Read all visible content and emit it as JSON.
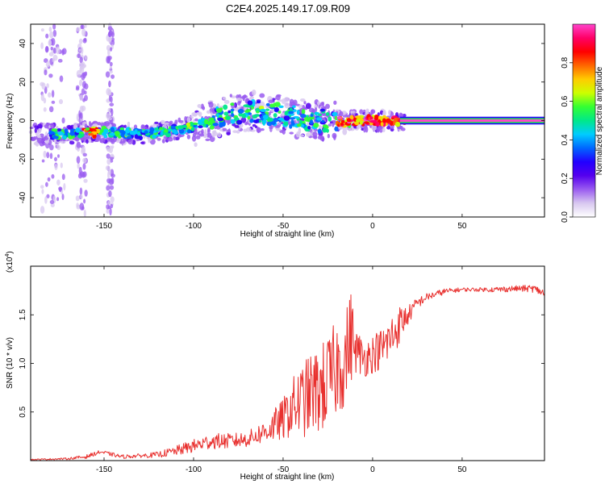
{
  "chart_data": [
    {
      "type": "heatmap",
      "title": "C2E4.2025.149.17.09.R09",
      "xlabel": "Height of straight line (km)",
      "ylabel": "Frequency (Hz)",
      "xlim": [
        -191,
        96
      ],
      "ylim": [
        -50,
        50
      ],
      "x_ticks": [
        -150,
        -100,
        -50,
        0,
        50
      ],
      "y_ticks": [
        -40,
        -20,
        0,
        20,
        40
      ],
      "colorbar": {
        "label": "Normalized spectral amplitude",
        "ticks": [
          0.0,
          0.2,
          0.4,
          0.6,
          0.8
        ],
        "range": [
          0,
          1
        ],
        "colors": [
          "#ffffff",
          "#d8c8f0",
          "#9a5cf0",
          "#5500ee",
          "#2200ff",
          "#0066ff",
          "#00ccff",
          "#00e88a",
          "#33ff33",
          "#ccff00",
          "#ffcc00",
          "#ff6600",
          "#ff0000",
          "#ff0066",
          "#ff44cc"
        ]
      },
      "ridge": {
        "x": [
          -190,
          -170,
          -160,
          -150,
          -140,
          -130,
          -120,
          -110,
          -100,
          -90,
          -80,
          -70,
          -60,
          -50,
          -40,
          -30,
          -20,
          -15,
          -10,
          0,
          10,
          20,
          50,
          96
        ],
        "y": [
          -7,
          -7,
          -6,
          -6,
          -6.5,
          -7,
          -6,
          -5,
          -3,
          0,
          3,
          5,
          4,
          3,
          1,
          0,
          0,
          -1,
          0,
          0,
          0,
          0,
          0,
          0
        ]
      },
      "band_start_x": 18,
      "band_value": 1.0
    },
    {
      "type": "line",
      "xlabel": "Height of straight line (km)",
      "ylabel": "SNR (10 * v/v)",
      "y_multiplier": "(x10",
      "y_multiplier_exp": "4",
      "y_multiplier_close": ")",
      "xlim": [
        -191,
        96
      ],
      "ylim": [
        0,
        2.0
      ],
      "x_ticks": [
        -150,
        -100,
        -50,
        0,
        50
      ],
      "y_ticks": [
        0.5,
        1.0,
        1.5
      ],
      "y_tick_labels": [
        "0.5",
        "1.0",
        "1.5"
      ],
      "color": "#e8302e",
      "series": [
        {
          "x": [
            -191,
            -170,
            -160,
            -152,
            -140,
            -130,
            -120,
            -110,
            -100,
            -90,
            -80,
            -70,
            -60,
            -50,
            -45,
            -40,
            -35,
            -30,
            -25,
            -20,
            -15,
            -12,
            -10,
            -5,
            0,
            5,
            10,
            15,
            20,
            25,
            30,
            40,
            50,
            60,
            70,
            80,
            90,
            96
          ],
          "y": [
            0.01,
            0.02,
            0.04,
            0.09,
            0.04,
            0.05,
            0.06,
            0.1,
            0.15,
            0.2,
            0.2,
            0.22,
            0.3,
            0.42,
            0.55,
            0.6,
            0.68,
            0.72,
            0.8,
            0.95,
            1.05,
            1.3,
            1.15,
            1.05,
            1.1,
            1.15,
            1.25,
            1.4,
            1.5,
            1.62,
            1.68,
            1.74,
            1.76,
            1.76,
            1.76,
            1.77,
            1.77,
            1.72
          ],
          "noise": [
            0.005,
            0.01,
            0.02,
            0.02,
            0.02,
            0.02,
            0.03,
            0.05,
            0.07,
            0.08,
            0.08,
            0.08,
            0.12,
            0.22,
            0.3,
            0.38,
            0.42,
            0.45,
            0.5,
            0.5,
            0.5,
            0.5,
            0.25,
            0.2,
            0.2,
            0.22,
            0.25,
            0.2,
            0.1,
            0.06,
            0.04,
            0.03,
            0.02,
            0.02,
            0.03,
            0.03,
            0.04,
            0.04
          ]
        }
      ]
    }
  ]
}
